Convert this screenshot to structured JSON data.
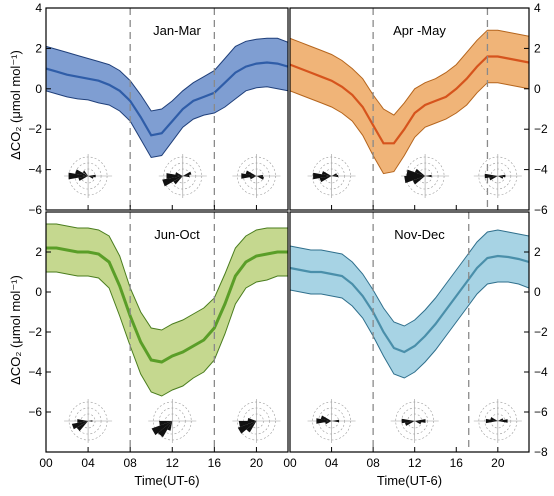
{
  "chart_data": [
    {
      "type": "area",
      "title": "Jan-Mar",
      "ylim": [
        -6,
        4
      ],
      "xlim": [
        0,
        23
      ],
      "yticks": [
        -6,
        -4,
        -2,
        0,
        2,
        4
      ],
      "xticks": [
        0,
        4,
        8,
        12,
        16,
        20
      ],
      "vlines": [
        8,
        16
      ],
      "color": "#2f5da8",
      "fill": "#7f9ed2",
      "edge": "#1f3f7a",
      "x": [
        0,
        1,
        2,
        3,
        4,
        5,
        6,
        7,
        8,
        9,
        10,
        11,
        12,
        13,
        14,
        15,
        16,
        17,
        18,
        19,
        20,
        21,
        22,
        23
      ],
      "mean": [
        1.0,
        0.85,
        0.7,
        0.6,
        0.5,
        0.4,
        0.2,
        -0.1,
        -0.6,
        -1.4,
        -2.3,
        -2.2,
        -1.6,
        -1.0,
        -0.6,
        -0.4,
        -0.2,
        0.3,
        0.8,
        1.1,
        1.25,
        1.3,
        1.25,
        1.1
      ],
      "upper": [
        2.1,
        1.95,
        1.8,
        1.65,
        1.5,
        1.35,
        1.2,
        0.9,
        0.4,
        -0.3,
        -1.1,
        -1.0,
        -0.6,
        -0.1,
        0.3,
        0.6,
        0.9,
        1.5,
        2.1,
        2.35,
        2.45,
        2.5,
        2.5,
        2.3
      ],
      "lower": [
        -0.1,
        -0.25,
        -0.4,
        -0.5,
        -0.55,
        -0.7,
        -0.8,
        -1.1,
        -1.6,
        -2.5,
        -3.4,
        -3.3,
        -2.6,
        -1.9,
        -1.5,
        -1.3,
        -1.2,
        -0.9,
        -0.5,
        -0.1,
        0.05,
        0.1,
        0.0,
        -0.1
      ],
      "roses": [
        {
          "x": 4,
          "petals": [
            {
              "a": 180,
              "r": 0.9
            },
            {
              "a": 200,
              "r": 0.6
            },
            {
              "a": 160,
              "r": 0.45
            },
            {
              "a": 0,
              "r": 0.35
            },
            {
              "a": 20,
              "r": 0.25
            },
            {
              "a": 225,
              "r": 0.3
            }
          ]
        },
        {
          "x": 13,
          "petals": [
            {
              "a": 160,
              "r": 0.95
            },
            {
              "a": 180,
              "r": 0.75
            },
            {
              "a": 140,
              "r": 0.5
            },
            {
              "a": 340,
              "r": 0.4
            },
            {
              "a": 0,
              "r": 0.3
            },
            {
              "a": 200,
              "r": 0.35
            }
          ]
        },
        {
          "x": 20,
          "petals": [
            {
              "a": 180,
              "r": 0.7
            },
            {
              "a": 200,
              "r": 0.5
            },
            {
              "a": 20,
              "r": 0.35
            },
            {
              "a": 0,
              "r": 0.3
            },
            {
              "a": 160,
              "r": 0.3
            }
          ]
        }
      ]
    },
    {
      "type": "area",
      "title": "Apr -May",
      "ylim": [
        -6,
        4
      ],
      "xlim": [
        0,
        23
      ],
      "yticks": [
        -6,
        -4,
        -2,
        0,
        2,
        4
      ],
      "xticks": [
        0,
        4,
        8,
        12,
        16,
        20
      ],
      "vlines": [
        8,
        19
      ],
      "color": "#d6541d",
      "fill": "#f0b478",
      "edge": "#b5651d",
      "x": [
        0,
        1,
        2,
        3,
        4,
        5,
        6,
        7,
        8,
        9,
        10,
        11,
        12,
        13,
        14,
        15,
        16,
        17,
        18,
        19,
        20,
        21,
        22,
        23
      ],
      "mean": [
        1.2,
        1.0,
        0.8,
        0.6,
        0.4,
        0.1,
        -0.3,
        -0.9,
        -1.8,
        -2.7,
        -2.7,
        -2.0,
        -1.2,
        -0.8,
        -0.6,
        -0.4,
        0.0,
        0.5,
        1.1,
        1.6,
        1.6,
        1.5,
        1.4,
        1.3
      ],
      "upper": [
        2.5,
        2.3,
        2.1,
        1.9,
        1.7,
        1.4,
        1.0,
        0.5,
        -0.3,
        -1.0,
        -1.3,
        -0.7,
        0.0,
        0.3,
        0.5,
        0.8,
        1.2,
        1.8,
        2.4,
        2.9,
        2.9,
        2.8,
        2.7,
        2.6
      ],
      "lower": [
        -0.1,
        -0.3,
        -0.5,
        -0.7,
        -0.9,
        -1.2,
        -1.6,
        -2.3,
        -3.3,
        -4.2,
        -4.1,
        -3.3,
        -2.4,
        -1.9,
        -1.7,
        -1.5,
        -1.2,
        -0.8,
        -0.2,
        0.3,
        0.3,
        0.2,
        0.1,
        0.0
      ],
      "roses": [
        {
          "x": 4,
          "petals": [
            {
              "a": 180,
              "r": 0.85
            },
            {
              "a": 160,
              "r": 0.55
            },
            {
              "a": 200,
              "r": 0.45
            },
            {
              "a": 0,
              "r": 0.3
            },
            {
              "a": 340,
              "r": 0.25
            }
          ]
        },
        {
          "x": 13,
          "petals": [
            {
              "a": 170,
              "r": 0.95
            },
            {
              "a": 190,
              "r": 0.85
            },
            {
              "a": 150,
              "r": 0.6
            },
            {
              "a": 210,
              "r": 0.5
            },
            {
              "a": 0,
              "r": 0.3
            }
          ]
        },
        {
          "x": 20,
          "petals": [
            {
              "a": 180,
              "r": 0.6
            },
            {
              "a": 160,
              "r": 0.4
            },
            {
              "a": 0,
              "r": 0.35
            },
            {
              "a": 20,
              "r": 0.25
            }
          ]
        }
      ]
    },
    {
      "type": "area",
      "title": "Jun-Oct",
      "ylim": [
        -8,
        4
      ],
      "xlim": [
        0,
        23
      ],
      "yticks": [
        -6,
        -4,
        -2,
        0,
        2
      ],
      "xticks": [
        0,
        4,
        8,
        12,
        16,
        20
      ],
      "xticklabels": [
        "00",
        "04",
        "08",
        "12",
        "16",
        "20"
      ],
      "xlabel": "Time(UT-6)",
      "vlines": [
        8,
        16
      ],
      "color": "#5a9e28",
      "fill": "#c5d88f",
      "edge": "#4a7d1e",
      "x": [
        0,
        1,
        2,
        3,
        4,
        5,
        6,
        7,
        8,
        9,
        10,
        11,
        12,
        13,
        14,
        15,
        16,
        17,
        18,
        19,
        20,
        21,
        22,
        23
      ],
      "mean": [
        2.2,
        2.2,
        2.1,
        2.0,
        2.0,
        1.9,
        1.5,
        0.3,
        -1.2,
        -2.5,
        -3.4,
        -3.5,
        -3.2,
        -3.0,
        -2.7,
        -2.4,
        -1.8,
        -0.6,
        0.8,
        1.5,
        1.8,
        1.9,
        2.0,
        2.0
      ],
      "upper": [
        3.4,
        3.4,
        3.3,
        3.2,
        3.2,
        3.1,
        2.8,
        1.8,
        0.2,
        -1.0,
        -1.8,
        -1.9,
        -1.6,
        -1.4,
        -1.1,
        -0.8,
        -0.3,
        0.9,
        2.2,
        2.8,
        3.1,
        3.2,
        3.2,
        3.2
      ],
      "lower": [
        1.0,
        1.0,
        0.9,
        0.8,
        0.8,
        0.7,
        0.2,
        -1.2,
        -2.7,
        -4.1,
        -5.0,
        -5.2,
        -4.9,
        -4.7,
        -4.3,
        -4.0,
        -3.4,
        -2.1,
        -0.6,
        0.2,
        0.5,
        0.6,
        0.8,
        0.8
      ],
      "roses": [
        {
          "x": 4,
          "petals": [
            {
              "a": 160,
              "r": 0.75
            },
            {
              "a": 140,
              "r": 0.6
            },
            {
              "a": 180,
              "r": 0.5
            },
            {
              "a": 0,
              "r": 0.2
            }
          ]
        },
        {
          "x": 12,
          "petals": [
            {
              "a": 150,
              "r": 1.0
            },
            {
              "a": 130,
              "r": 0.85
            },
            {
              "a": 170,
              "r": 0.6
            },
            {
              "a": 110,
              "r": 0.45
            }
          ]
        },
        {
          "x": 20,
          "petals": [
            {
              "a": 150,
              "r": 0.9
            },
            {
              "a": 170,
              "r": 0.8
            },
            {
              "a": 130,
              "r": 0.6
            },
            {
              "a": 190,
              "r": 0.4
            }
          ]
        }
      ]
    },
    {
      "type": "area",
      "title": "Nov-Dec",
      "ylim": [
        -8,
        4
      ],
      "xlim": [
        0,
        23
      ],
      "yticks": [
        -8,
        -6,
        -4,
        -2,
        0,
        2
      ],
      "xticks": [
        0,
        4,
        8,
        12,
        16,
        20
      ],
      "xticklabels": [
        "00",
        "04",
        "08",
        "12",
        "16",
        "20"
      ],
      "xlabel": "Time(UT-6)",
      "vlines": [
        8,
        17.2
      ],
      "color": "#4a8faa",
      "fill": "#a7d3e4",
      "edge": "#2f6f8c",
      "x": [
        0,
        1,
        2,
        3,
        4,
        5,
        6,
        7,
        8,
        9,
        10,
        11,
        12,
        13,
        14,
        15,
        16,
        17,
        18,
        19,
        20,
        21,
        22,
        23
      ],
      "mean": [
        1.2,
        1.1,
        1.0,
        1.0,
        0.9,
        0.8,
        0.4,
        -0.2,
        -1.0,
        -2.0,
        -2.8,
        -3.0,
        -2.7,
        -2.2,
        -1.6,
        -0.9,
        -0.2,
        0.5,
        1.2,
        1.7,
        1.8,
        1.75,
        1.65,
        1.5
      ],
      "upper": [
        2.3,
        2.2,
        2.1,
        2.1,
        2.0,
        1.9,
        1.5,
        0.9,
        0.1,
        -0.8,
        -1.5,
        -1.7,
        -1.4,
        -0.9,
        -0.3,
        0.4,
        1.1,
        1.8,
        2.5,
        3.0,
        3.1,
        3.0,
        2.9,
        2.8
      ],
      "lower": [
        0.1,
        0.0,
        -0.1,
        -0.1,
        -0.2,
        -0.3,
        -0.7,
        -1.3,
        -2.2,
        -3.2,
        -4.1,
        -4.3,
        -4.0,
        -3.5,
        -2.9,
        -2.2,
        -1.5,
        -0.8,
        -0.1,
        0.4,
        0.5,
        0.5,
        0.4,
        0.2
      ],
      "roses": [
        {
          "x": 4,
          "petals": [
            {
              "a": 180,
              "r": 0.7
            },
            {
              "a": 200,
              "r": 0.5
            },
            {
              "a": 0,
              "r": 0.35
            },
            {
              "a": 160,
              "r": 0.3
            }
          ]
        },
        {
          "x": 12,
          "petals": [
            {
              "a": 180,
              "r": 0.6
            },
            {
              "a": 160,
              "r": 0.45
            },
            {
              "a": 0,
              "r": 0.5
            },
            {
              "a": 20,
              "r": 0.3
            }
          ]
        },
        {
          "x": 20,
          "petals": [
            {
              "a": 180,
              "r": 0.55
            },
            {
              "a": 0,
              "r": 0.45
            },
            {
              "a": 200,
              "r": 0.35
            },
            {
              "a": 340,
              "r": 0.25
            }
          ]
        }
      ]
    }
  ],
  "ylabel": "ΔCO₂ (μmol mol⁻¹)"
}
